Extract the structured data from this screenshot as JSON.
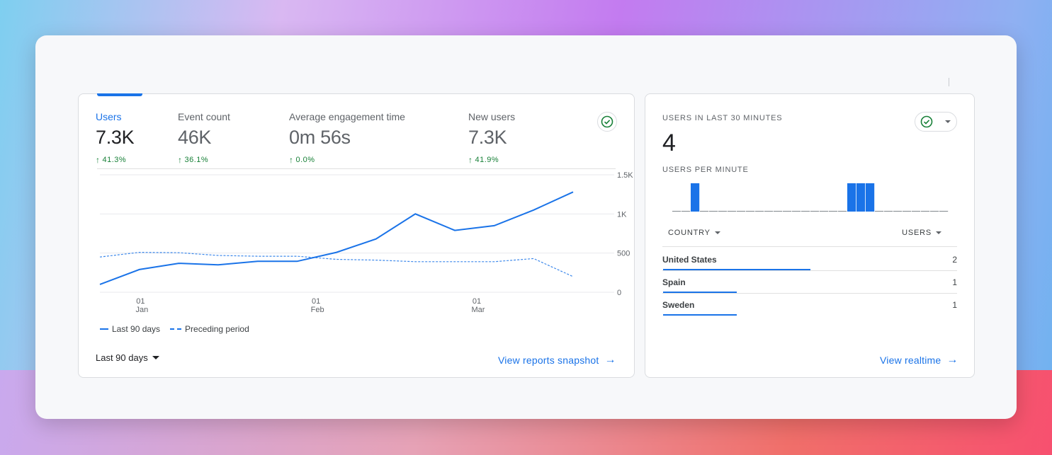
{
  "main_card": {
    "metrics": [
      {
        "label": "Users",
        "value": "7.3K",
        "change": "41.3%",
        "active": true
      },
      {
        "label": "Event count",
        "value": "46K",
        "change": "36.1%",
        "active": false
      },
      {
        "label": "Average engagement time",
        "value": "0m 56s",
        "change": "0.0%",
        "active": false
      },
      {
        "label": "New users",
        "value": "7.3K",
        "change": "41.9%",
        "active": false
      }
    ],
    "date_range": "Last 90 days",
    "view_link": "View reports snapshot",
    "icons": {
      "check": "check-circle-icon",
      "arrow": "arrow-right-icon",
      "up": "arrow-up-icon"
    }
  },
  "chart_data": {
    "type": "line",
    "y_ticks": [
      "1.5K",
      "1K",
      "500",
      "0"
    ],
    "ylim": [
      0,
      1500
    ],
    "x_ticks": [
      {
        "day": "01",
        "month": "Jan"
      },
      {
        "day": "01",
        "month": "Feb"
      },
      {
        "day": "01",
        "month": "Mar"
      }
    ],
    "series": [
      {
        "name": "Last 90 days",
        "style": "solid",
        "color": "#1a73e8",
        "values": [
          100,
          290,
          370,
          350,
          395,
          395,
          510,
          680,
          1000,
          790,
          850,
          1050,
          1280
        ]
      },
      {
        "name": "Preceding period",
        "style": "dashed",
        "color": "#1a73e8",
        "values": [
          450,
          510,
          505,
          470,
          460,
          460,
          420,
          410,
          390,
          390,
          390,
          430,
          200
        ]
      }
    ]
  },
  "realtime": {
    "title": "USERS IN LAST 30 MINUTES",
    "count": "4",
    "subtitle": "USERS PER MINUTE",
    "per_minute": [
      0,
      0,
      1,
      0,
      0,
      0,
      0,
      0,
      0,
      0,
      0,
      0,
      0,
      0,
      0,
      0,
      0,
      0,
      0,
      1,
      1,
      1,
      0,
      0,
      0,
      0,
      0,
      0,
      0,
      0
    ],
    "col_country": "COUNTRY",
    "col_users": "USERS",
    "rows": [
      {
        "country": "United States",
        "users": "2",
        "share": 1.0
      },
      {
        "country": "Spain",
        "users": "1",
        "share": 0.5
      },
      {
        "country": "Sweden",
        "users": "1",
        "share": 0.5
      }
    ],
    "view_link": "View realtime"
  }
}
